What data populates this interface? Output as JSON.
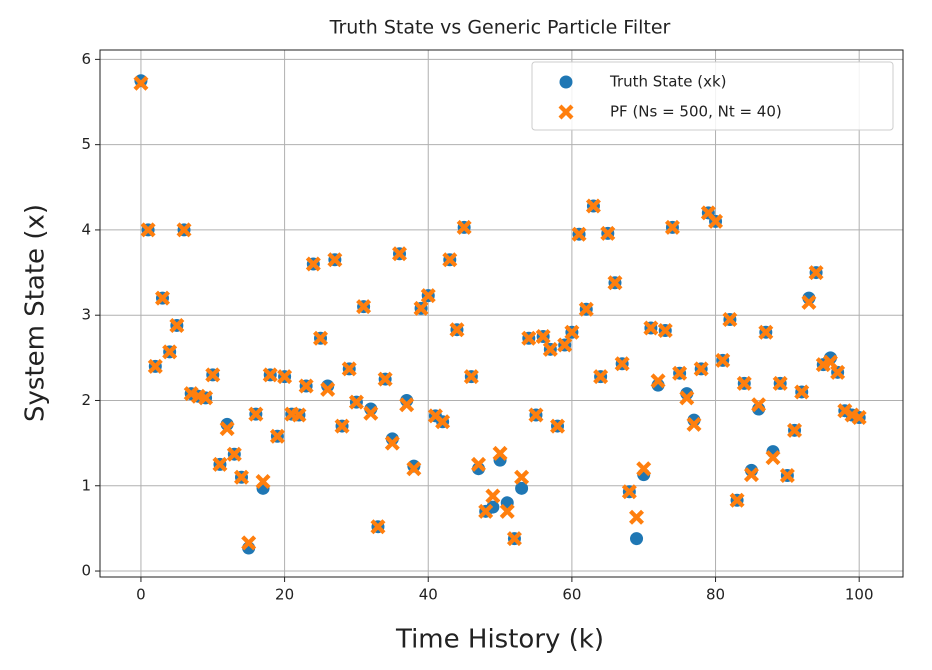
{
  "chart_data": {
    "type": "scatter",
    "title": "Truth State vs Generic Particle Filter",
    "x_label": "Time History (k)",
    "y_label": "System State (x)",
    "x": [
      0,
      1,
      2,
      3,
      4,
      5,
      6,
      7,
      8,
      9,
      10,
      11,
      12,
      13,
      14,
      15,
      16,
      17,
      18,
      19,
      20,
      21,
      22,
      23,
      24,
      25,
      26,
      27,
      28,
      29,
      30,
      31,
      32,
      33,
      34,
      35,
      36,
      37,
      38,
      39,
      40,
      41,
      42,
      43,
      44,
      45,
      46,
      47,
      48,
      49,
      50,
      51,
      52,
      53,
      54,
      55,
      56,
      57,
      58,
      59,
      60,
      61,
      62,
      63,
      64,
      65,
      66,
      67,
      68,
      69,
      70,
      71,
      72,
      73,
      74,
      75,
      76,
      77,
      78,
      79,
      80,
      81,
      82,
      83,
      84,
      85,
      86,
      87,
      88,
      89,
      90,
      91,
      92,
      93,
      94,
      95,
      96,
      97,
      98,
      99,
      100
    ],
    "series": [
      {
        "name": "Truth State (xk)",
        "color": "#1f77b4",
        "marker": "circle",
        "values": [
          5.75,
          4.0,
          2.4,
          3.2,
          2.57,
          2.88,
          4.0,
          2.08,
          2.05,
          2.03,
          2.3,
          1.25,
          1.72,
          1.37,
          1.1,
          0.27,
          1.84,
          0.97,
          2.3,
          1.58,
          2.28,
          1.84,
          1.83,
          2.17,
          3.6,
          2.73,
          2.17,
          3.65,
          1.7,
          2.37,
          1.98,
          3.1,
          1.9,
          0.52,
          2.25,
          1.55,
          3.72,
          2.0,
          1.23,
          3.08,
          3.23,
          1.82,
          1.75,
          3.65,
          2.83,
          4.03,
          2.28,
          1.2,
          0.7,
          0.75,
          1.3,
          0.8,
          0.38,
          0.97,
          2.73,
          1.83,
          2.75,
          2.6,
          1.7,
          2.65,
          2.8,
          3.95,
          3.07,
          4.28,
          2.28,
          3.96,
          3.38,
          2.43,
          0.93,
          0.38,
          1.13,
          2.85,
          2.18,
          2.82,
          4.03,
          2.32,
          2.08,
          1.77,
          2.37,
          4.2,
          4.1,
          2.47,
          2.95,
          0.83,
          2.2,
          1.18,
          1.9,
          2.8,
          1.4,
          2.2,
          1.12,
          1.65,
          2.1,
          3.2,
          3.5,
          2.42,
          2.5,
          2.33,
          1.88,
          1.83,
          1.8
        ]
      },
      {
        "name": "PF (Ns = 500, Nt = 40)",
        "color": "#ff7f0e",
        "marker": "x",
        "values": [
          5.72,
          4.0,
          2.4,
          3.2,
          2.57,
          2.88,
          4.0,
          2.08,
          2.05,
          2.03,
          2.3,
          1.25,
          1.67,
          1.37,
          1.1,
          0.33,
          1.84,
          1.05,
          2.3,
          1.58,
          2.28,
          1.84,
          1.83,
          2.17,
          3.6,
          2.73,
          2.13,
          3.65,
          1.7,
          2.37,
          1.98,
          3.1,
          1.85,
          0.52,
          2.25,
          1.5,
          3.72,
          1.95,
          1.2,
          3.08,
          3.23,
          1.82,
          1.75,
          3.65,
          2.83,
          4.03,
          2.28,
          1.25,
          0.7,
          0.88,
          1.38,
          0.7,
          0.38,
          1.1,
          2.73,
          1.83,
          2.75,
          2.6,
          1.7,
          2.65,
          2.8,
          3.95,
          3.07,
          4.28,
          2.28,
          3.96,
          3.38,
          2.43,
          0.93,
          0.63,
          1.2,
          2.85,
          2.23,
          2.82,
          4.03,
          2.32,
          2.03,
          1.72,
          2.37,
          4.2,
          4.1,
          2.47,
          2.95,
          0.83,
          2.2,
          1.13,
          1.95,
          2.8,
          1.33,
          2.2,
          1.12,
          1.65,
          2.1,
          3.15,
          3.5,
          2.42,
          2.45,
          2.33,
          1.88,
          1.83,
          1.8
        ]
      }
    ],
    "xlim": [
      -5.7,
      106.1
    ],
    "ylim": [
      -0.07,
      6.11
    ],
    "xticks": [
      0,
      20,
      40,
      60,
      80,
      100
    ],
    "yticks": [
      0,
      1,
      2,
      3,
      4,
      5,
      6
    ],
    "grid": true,
    "legend": "upper right"
  }
}
